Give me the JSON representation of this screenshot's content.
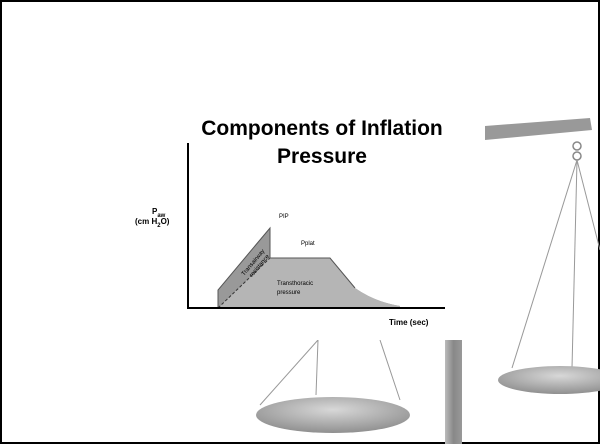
{
  "slide": {
    "title_lines": [
      "Components of Inflation",
      "Pressure"
    ],
    "y_axis_label": {
      "symbol": "P",
      "symbol_subscript": "aw",
      "unit_before": "(cm H",
      "unit_subscript": "2",
      "unit_after": "O)"
    },
    "x_axis_label": "Time (sec)",
    "peak_label": "PIP",
    "plateau_label": "Pplat",
    "airway_label_lines": [
      "Transairway",
      "resistance"
    ],
    "thoracic_label_lines": [
      "Transthoracic",
      "pressure"
    ]
  }
}
